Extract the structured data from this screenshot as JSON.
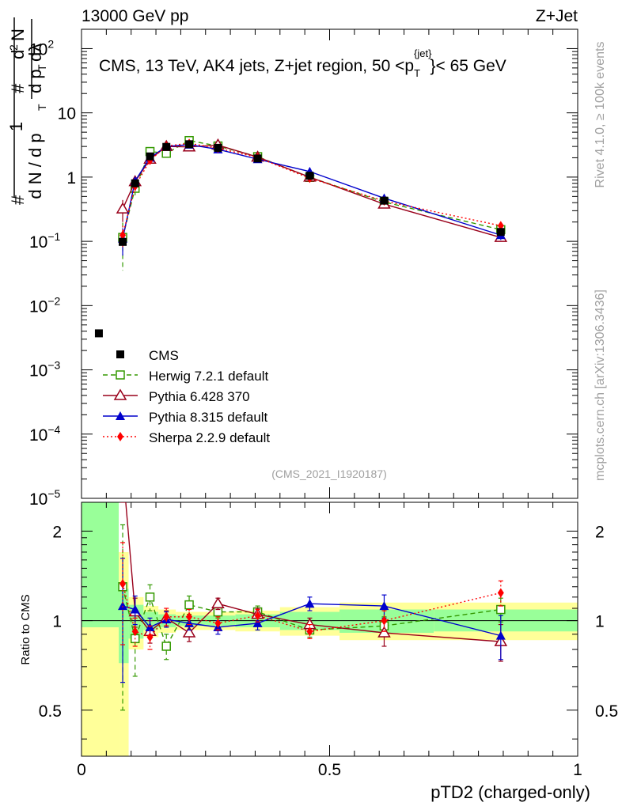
{
  "header": {
    "left": "13000 GeV pp",
    "right": "Z+Jet"
  },
  "side_labels": {
    "rivet": "Rivet 4.1.0, ≥ 100k events",
    "mcplots": "mcplots.cern.ch [arXiv:1306.3436]"
  },
  "chart_data": {
    "type": "line",
    "title": "CMS, 13 TeV, AK4 jets, Z+jet region, 50 <p_T^{jet}< 65 GeV",
    "title_main": "CMS, 13 TeV, AK4 jets, Z+jet region, 50 <p",
    "title_sup": "{jet}",
    "title_sub": "T",
    "title_end": "}< 65 GeV",
    "analysis_id": "(CMS_2021_I1920187)",
    "xlabel": "pTD2 (charged-only)",
    "ylabel_ratio": "Ratio to CMS",
    "xlim": [
      0,
      1
    ],
    "ylim_main": [
      1e-05,
      200
    ],
    "ylim_ratio": [
      0.35,
      2.5
    ],
    "x_ticks": [
      {
        "value": 0,
        "label": "0"
      },
      {
        "value": 0.5,
        "label": "0.5"
      },
      {
        "value": 1,
        "label": "1"
      }
    ],
    "y_ticks_main": [
      {
        "value": 100,
        "base": "10",
        "exp": "2"
      },
      {
        "value": 10,
        "base": "10",
        "exp": ""
      },
      {
        "value": 1,
        "base": "1",
        "exp": ""
      },
      {
        "value": 0.1,
        "base": "10",
        "exp": "−1"
      },
      {
        "value": 0.01,
        "base": "10",
        "exp": "−2"
      },
      {
        "value": 0.001,
        "base": "10",
        "exp": "−3"
      },
      {
        "value": 0.0001,
        "base": "10",
        "exp": "−4"
      },
      {
        "value": 1e-05,
        "base": "10",
        "exp": "−5"
      }
    ],
    "y_ticks_ratio": [
      {
        "value": 2,
        "label": "2"
      },
      {
        "value": 1,
        "label": "1"
      },
      {
        "value": 0.5,
        "label": "0.5"
      }
    ],
    "data": {
      "name": "CMS",
      "bins": [
        [
          0,
          0.075
        ],
        [
          0.075,
          0.095
        ],
        [
          0.095,
          0.125
        ],
        [
          0.125,
          0.155
        ],
        [
          0.155,
          0.19
        ],
        [
          0.19,
          0.245
        ],
        [
          0.245,
          0.31
        ],
        [
          0.31,
          0.4
        ],
        [
          0.4,
          0.52
        ],
        [
          0.52,
          0.71
        ],
        [
          0.71,
          1.0
        ]
      ],
      "x": [
        0.035,
        0.083,
        0.108,
        0.138,
        0.171,
        0.217,
        0.275,
        0.355,
        0.46,
        0.61,
        0.845
      ],
      "y": [
        0.0037,
        0.098,
        0.8,
        2.1,
        2.95,
        3.25,
        2.85,
        1.95,
        1.05,
        0.43,
        0.14
      ],
      "stat_band": [
        [
          0.95,
          2.5
        ],
        [
          0.72,
          1.28
        ],
        [
          0.87,
          1.13
        ],
        [
          0.93,
          1.07
        ],
        [
          0.95,
          1.05
        ],
        [
          0.96,
          1.04
        ],
        [
          0.96,
          1.04
        ],
        [
          0.95,
          1.05
        ],
        [
          0.93,
          1.07
        ],
        [
          0.91,
          1.09
        ],
        [
          0.92,
          1.09
        ]
      ],
      "syst_band": [
        [
          0.35,
          2.5
        ],
        [
          0.35,
          1.7
        ],
        [
          0.8,
          1.2
        ],
        [
          0.88,
          1.12
        ],
        [
          0.91,
          1.09
        ],
        [
          0.93,
          1.07
        ],
        [
          0.93,
          1.07
        ],
        [
          0.92,
          1.08
        ],
        [
          0.89,
          1.11
        ],
        [
          0.86,
          1.15
        ],
        [
          0.86,
          1.15
        ]
      ]
    },
    "series": [
      {
        "name": "Herwig 7.2.1 default",
        "color": "#339900",
        "marker": "square-open",
        "dash": "6,4",
        "x": [
          0.083,
          0.108,
          0.138,
          0.171,
          0.217,
          0.275,
          0.355,
          0.46,
          0.61,
          0.845
        ],
        "y": [
          0.115,
          0.67,
          2.5,
          2.35,
          3.7,
          3.05,
          2.08,
          0.99,
          0.41,
          0.152
        ],
        "ratio": [
          1.3,
          0.87,
          1.2,
          0.82,
          1.13,
          1.07,
          1.07,
          0.93,
          0.96,
          1.09
        ],
        "ratio_err": [
          0.8,
          0.22,
          0.12,
          0.08,
          0.08,
          0.05,
          0.05,
          0.05,
          0.07,
          0.1
        ],
        "y_err": [
          0.08,
          0.15,
          0.25,
          0.2,
          0.25,
          0.2,
          0.12,
          0.06,
          0.03,
          0.015
        ]
      },
      {
        "name": "Pythia 6.428 370",
        "color": "#99001a",
        "marker": "triangle-open",
        "dash": "",
        "x": [
          0.083,
          0.108,
          0.138,
          0.171,
          0.217,
          0.275,
          0.355,
          0.46,
          0.61,
          0.845
        ],
        "y": [
          0.32,
          0.85,
          1.9,
          3.0,
          2.95,
          3.15,
          2.05,
          1.0,
          0.38,
          0.115
        ],
        "ratio": [
          3.3,
          1.07,
          0.92,
          1.02,
          0.91,
          1.14,
          1.05,
          0.97,
          0.91,
          0.85
        ],
        "ratio_err": [
          0.8,
          0.12,
          0.08,
          0.06,
          0.06,
          0.05,
          0.05,
          0.05,
          0.09,
          0.12
        ],
        "y_err": [
          0.12,
          0.15,
          0.2,
          0.2,
          0.2,
          0.2,
          0.12,
          0.06,
          0.04,
          0.015
        ]
      },
      {
        "name": "Pythia 8.315 default",
        "color": "#0000cc",
        "marker": "triangle-filled",
        "dash": "",
        "x": [
          0.083,
          0.108,
          0.138,
          0.171,
          0.217,
          0.275,
          0.355,
          0.46,
          0.61,
          0.845
        ],
        "y": [
          0.11,
          0.87,
          2.0,
          3.0,
          3.2,
          2.7,
          1.9,
          1.22,
          0.47,
          0.125
        ],
        "ratio": [
          1.12,
          1.09,
          0.95,
          1.01,
          0.98,
          0.95,
          0.98,
          1.14,
          1.12,
          0.89
        ],
        "ratio_err": [
          0.5,
          0.12,
          0.07,
          0.06,
          0.05,
          0.05,
          0.05,
          0.06,
          0.1,
          0.15
        ],
        "y_err": [
          0.05,
          0.12,
          0.2,
          0.2,
          0.2,
          0.2,
          0.12,
          0.07,
          0.05,
          0.02
        ]
      },
      {
        "name": "Sherpa 2.2.9 default",
        "color": "#ff0000",
        "marker": "diamond-filled",
        "dash": "2,3",
        "x": [
          0.083,
          0.108,
          0.138,
          0.171,
          0.217,
          0.275,
          0.355,
          0.46,
          0.61,
          0.845
        ],
        "y": [
          0.125,
          0.72,
          1.82,
          3.05,
          3.35,
          2.82,
          2.02,
          0.96,
          0.425,
          0.175
        ],
        "ratio": [
          1.33,
          0.92,
          0.88,
          1.03,
          1.03,
          0.98,
          1.04,
          0.92,
          1.0,
          1.24
        ],
        "ratio_err": [
          0.5,
          0.1,
          0.08,
          0.07,
          0.06,
          0.05,
          0.05,
          0.05,
          0.08,
          0.12
        ],
        "y_err": [
          0.05,
          0.12,
          0.2,
          0.2,
          0.2,
          0.2,
          0.12,
          0.06,
          0.04,
          0.02
        ]
      }
    ]
  }
}
